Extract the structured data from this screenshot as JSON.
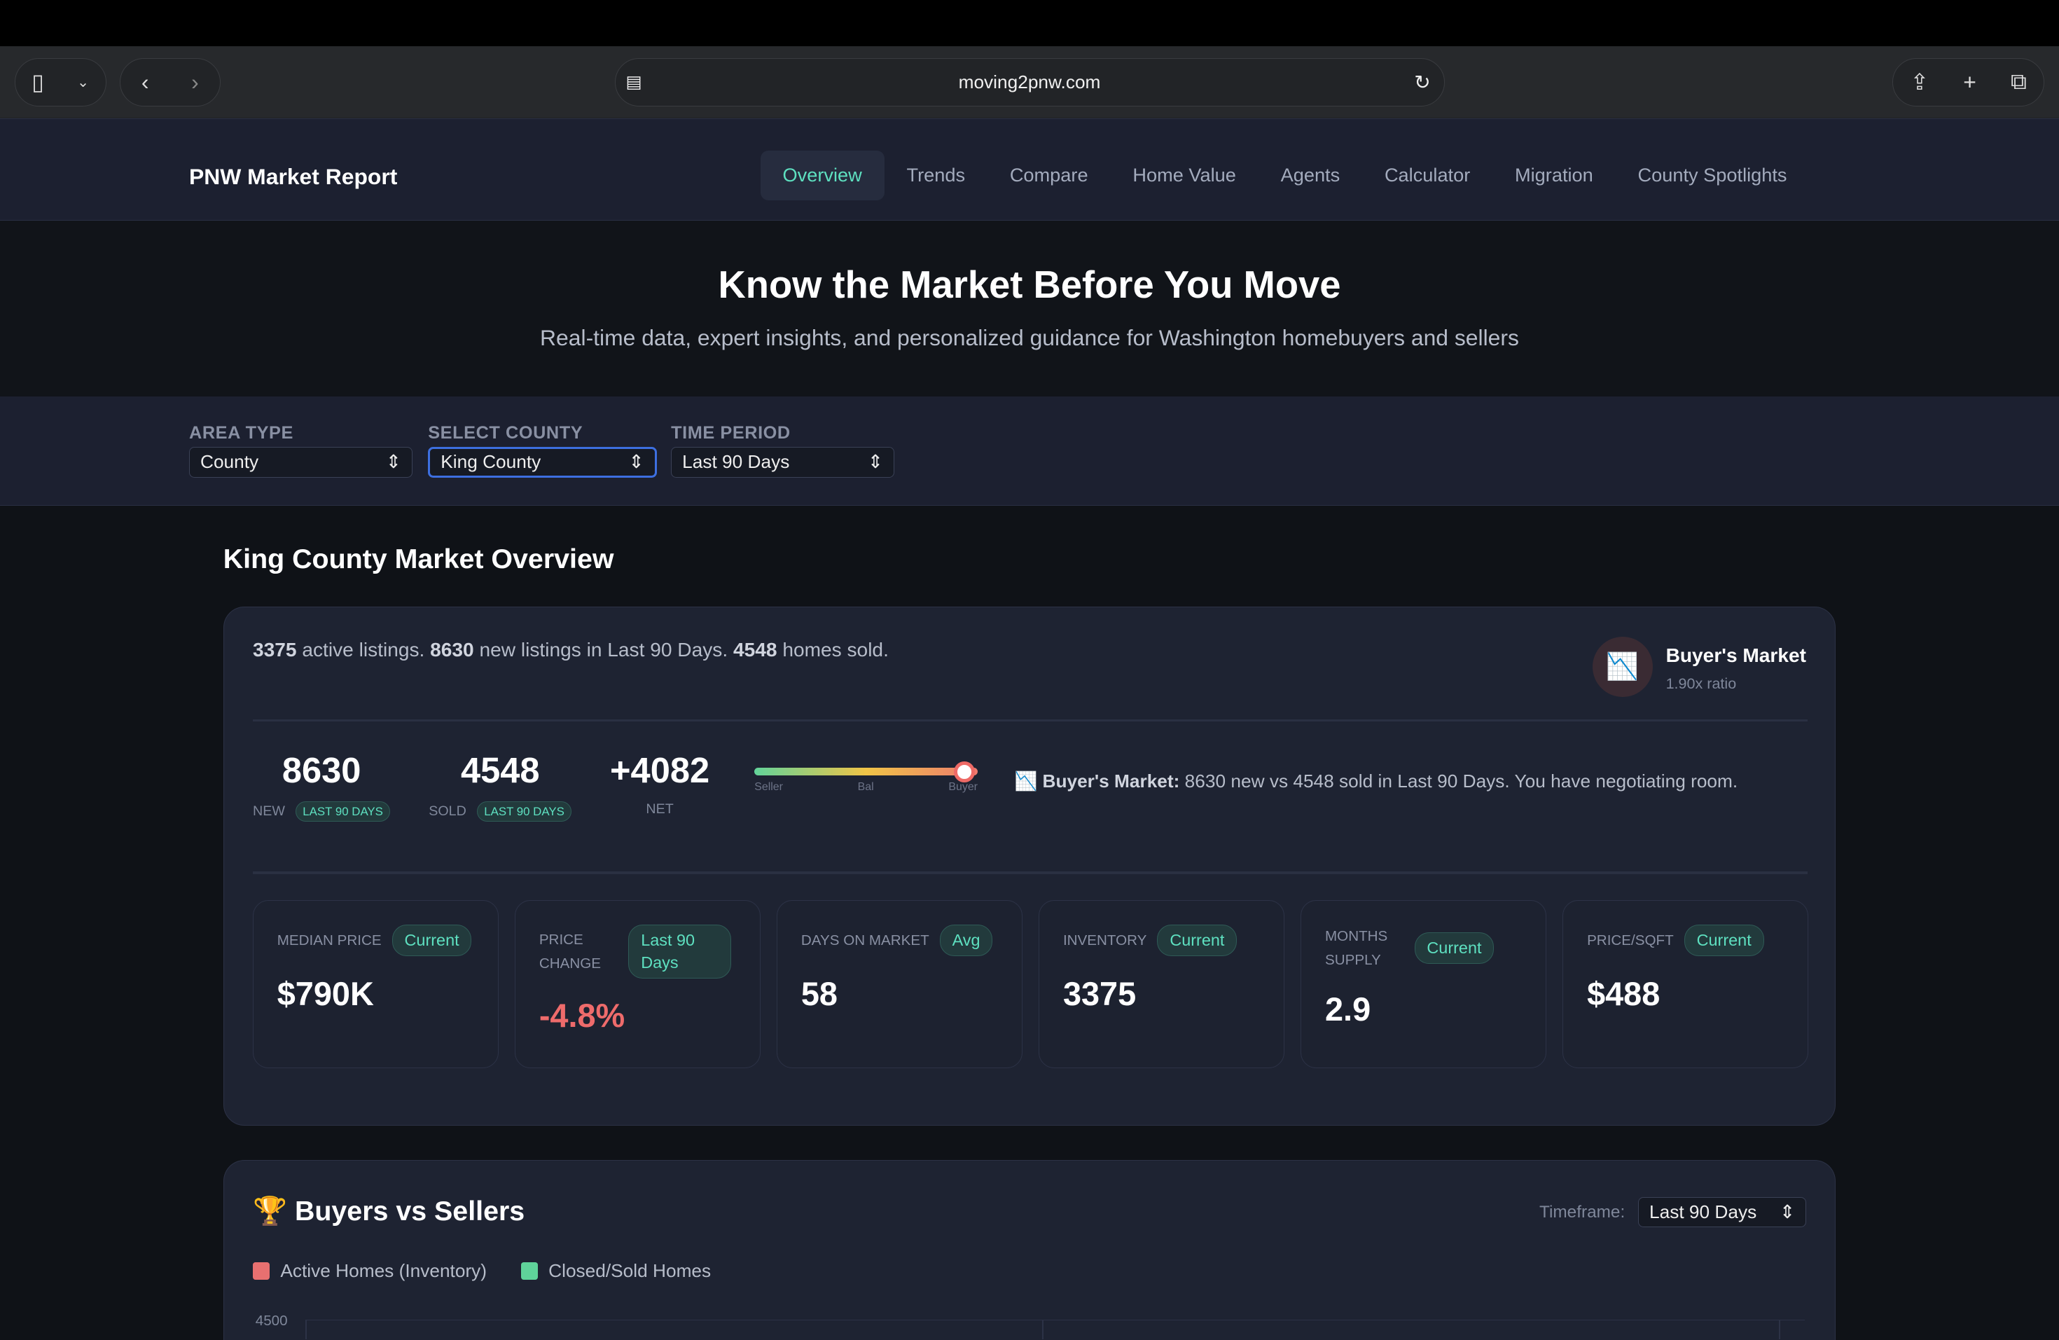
{
  "browser": {
    "url": "moving2pnw.com"
  },
  "nav": {
    "brand": "PNW Market Report",
    "tabs": [
      "Overview",
      "Trends",
      "Compare",
      "Home Value",
      "Agents",
      "Calculator",
      "Migration",
      "County Spotlights"
    ]
  },
  "hero": {
    "title": "Know the Market Before You Move",
    "subtitle": "Real-time data, expert insights, and personalized guidance for Washington homebuyers and sellers"
  },
  "filters": {
    "area_label": "AREA TYPE",
    "area_value": "County",
    "county_label": "SELECT COUNTY",
    "county_value": "King County",
    "period_label": "TIME PERIOD",
    "period_value": "Last 90 Days"
  },
  "overview": {
    "title": "King County Market Overview",
    "summary": {
      "active": "3375",
      "t1": " active listings. ",
      "new": "8630",
      "t2": " new listings in Last 90 Days. ",
      "sold": "4548",
      "t3": " homes sold."
    },
    "market": {
      "label": "Buyer's Market",
      "ratio": "1.90x ratio",
      "icon": "chart-decreasing-icon"
    },
    "stats": [
      {
        "value": "8630",
        "label": "NEW",
        "badge": "LAST 90 DAYS"
      },
      {
        "value": "4548",
        "label": "SOLD",
        "badge": "LAST 90 DAYS"
      },
      {
        "value": "+4082",
        "label": "NET"
      }
    ],
    "gauge": {
      "labels": [
        "Seller",
        "Bal",
        "Buyer"
      ],
      "position": 0.94
    },
    "message": {
      "bold": "Buyer's Market:",
      "text": " 8630 new vs 4548 sold in Last 90 Days. You have negotiating room."
    },
    "metrics": [
      {
        "label": "MEDIAN PRICE",
        "badge": "Current",
        "value": "$790K"
      },
      {
        "label": "PRICE CHANGE",
        "badge": "Last 90 Days",
        "value": "-4.8%",
        "color": "#ee6b6b"
      },
      {
        "label": "DAYS ON MARKET",
        "badge": "Avg",
        "value": "58"
      },
      {
        "label": "INVENTORY",
        "badge": "Current",
        "value": "3375"
      },
      {
        "label": "MONTHS SUPPLY",
        "badge": "Current",
        "value": "2.9"
      },
      {
        "label": "PRICE/SQFT",
        "badge": "Current",
        "value": "$488"
      }
    ]
  },
  "buyers_sellers": {
    "title": "Buyers vs Sellers",
    "timeframe_label": "Timeframe:",
    "timeframe_value": "Last 90 Days",
    "legend": [
      {
        "label": "Active Homes (Inventory)",
        "color": "#e87070"
      },
      {
        "label": "Closed/Sold Homes",
        "color": "#5fd39a"
      }
    ],
    "y_top_tick": "4500"
  }
}
